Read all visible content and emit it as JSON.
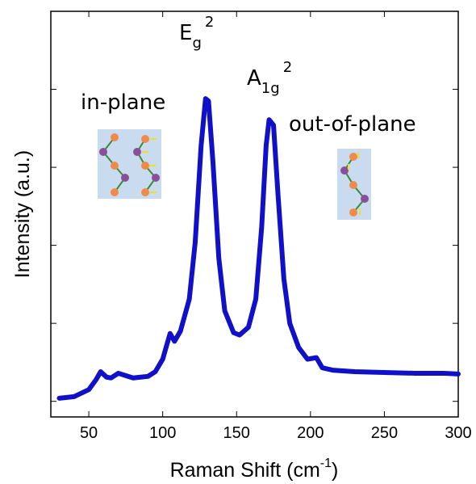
{
  "chart_data": {
    "type": "line",
    "x_label": {
      "text": "Raman Shift (cm",
      "sup": "-1",
      "end": ")"
    },
    "y_label": "Intensity (a.u.)",
    "annotations": [
      {
        "main": "E",
        "sub": "g",
        "sup": "2"
      },
      {
        "main": "A",
        "sub": "1g",
        "sup": "2"
      },
      {
        "text": "in-plane"
      },
      {
        "text": "out-of-plane"
      }
    ],
    "x": [
      30,
      40,
      50,
      55,
      58,
      62,
      65,
      70,
      75,
      80,
      85,
      90,
      95,
      100,
      105,
      108,
      112,
      118,
      122,
      126,
      129,
      131,
      134,
      138,
      142,
      148,
      152,
      158,
      163,
      167,
      170,
      172,
      175,
      178,
      182,
      186,
      192,
      198,
      204,
      208,
      215,
      230,
      250,
      270,
      290,
      300
    ],
    "series": [
      {
        "color": "#1010c8",
        "values": [
          0.04,
          0.06,
          0.15,
          0.28,
          0.38,
          0.31,
          0.3,
          0.36,
          0.33,
          0.3,
          0.31,
          0.32,
          0.38,
          0.54,
          0.87,
          0.77,
          0.9,
          1.31,
          2.04,
          3.28,
          3.88,
          3.85,
          3.07,
          1.83,
          1.16,
          0.88,
          0.85,
          0.95,
          1.31,
          2.24,
          3.28,
          3.61,
          3.54,
          2.66,
          1.57,
          1.0,
          0.69,
          0.54,
          0.56,
          0.43,
          0.4,
          0.38,
          0.37,
          0.36,
          0.36,
          0.35
        ]
      }
    ],
    "xlim": [
      24.3,
      300
    ],
    "xticks": [
      50,
      100,
      150,
      200,
      250,
      300
    ],
    "ylim": [
      -0.2,
      5
    ],
    "yticks": [
      0,
      1,
      2,
      3,
      4
    ]
  }
}
